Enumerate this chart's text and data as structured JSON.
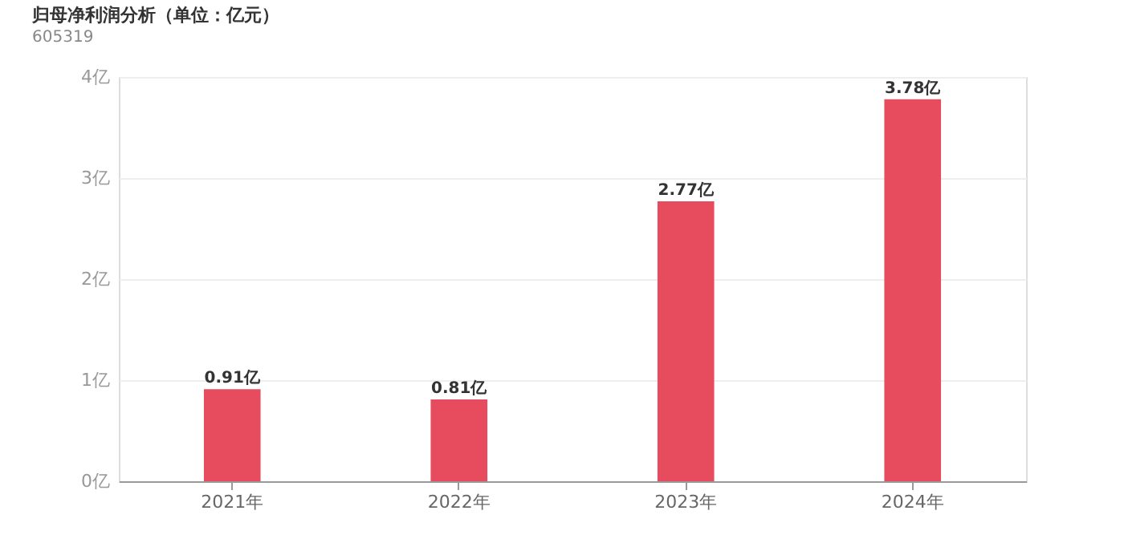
{
  "chart_data": {
    "type": "bar",
    "title": "归母净利润分析（单位：亿元）",
    "subtitle": "605319",
    "categories": [
      "2021年",
      "2022年",
      "2023年",
      "2024年"
    ],
    "values": [
      0.91,
      0.81,
      2.77,
      3.78
    ],
    "value_labels": [
      "0.91亿",
      "0.81亿",
      "2.77亿",
      "3.78亿"
    ],
    "color": "#e64c5e",
    "ylim": [
      0,
      4
    ],
    "yticks": [
      {
        "value": 0,
        "label": "0亿"
      },
      {
        "value": 1,
        "label": "1亿"
      },
      {
        "value": 2,
        "label": "2亿"
      },
      {
        "value": 3,
        "label": "3亿"
      },
      {
        "value": 4,
        "label": "4亿"
      }
    ],
    "grid": "y"
  }
}
